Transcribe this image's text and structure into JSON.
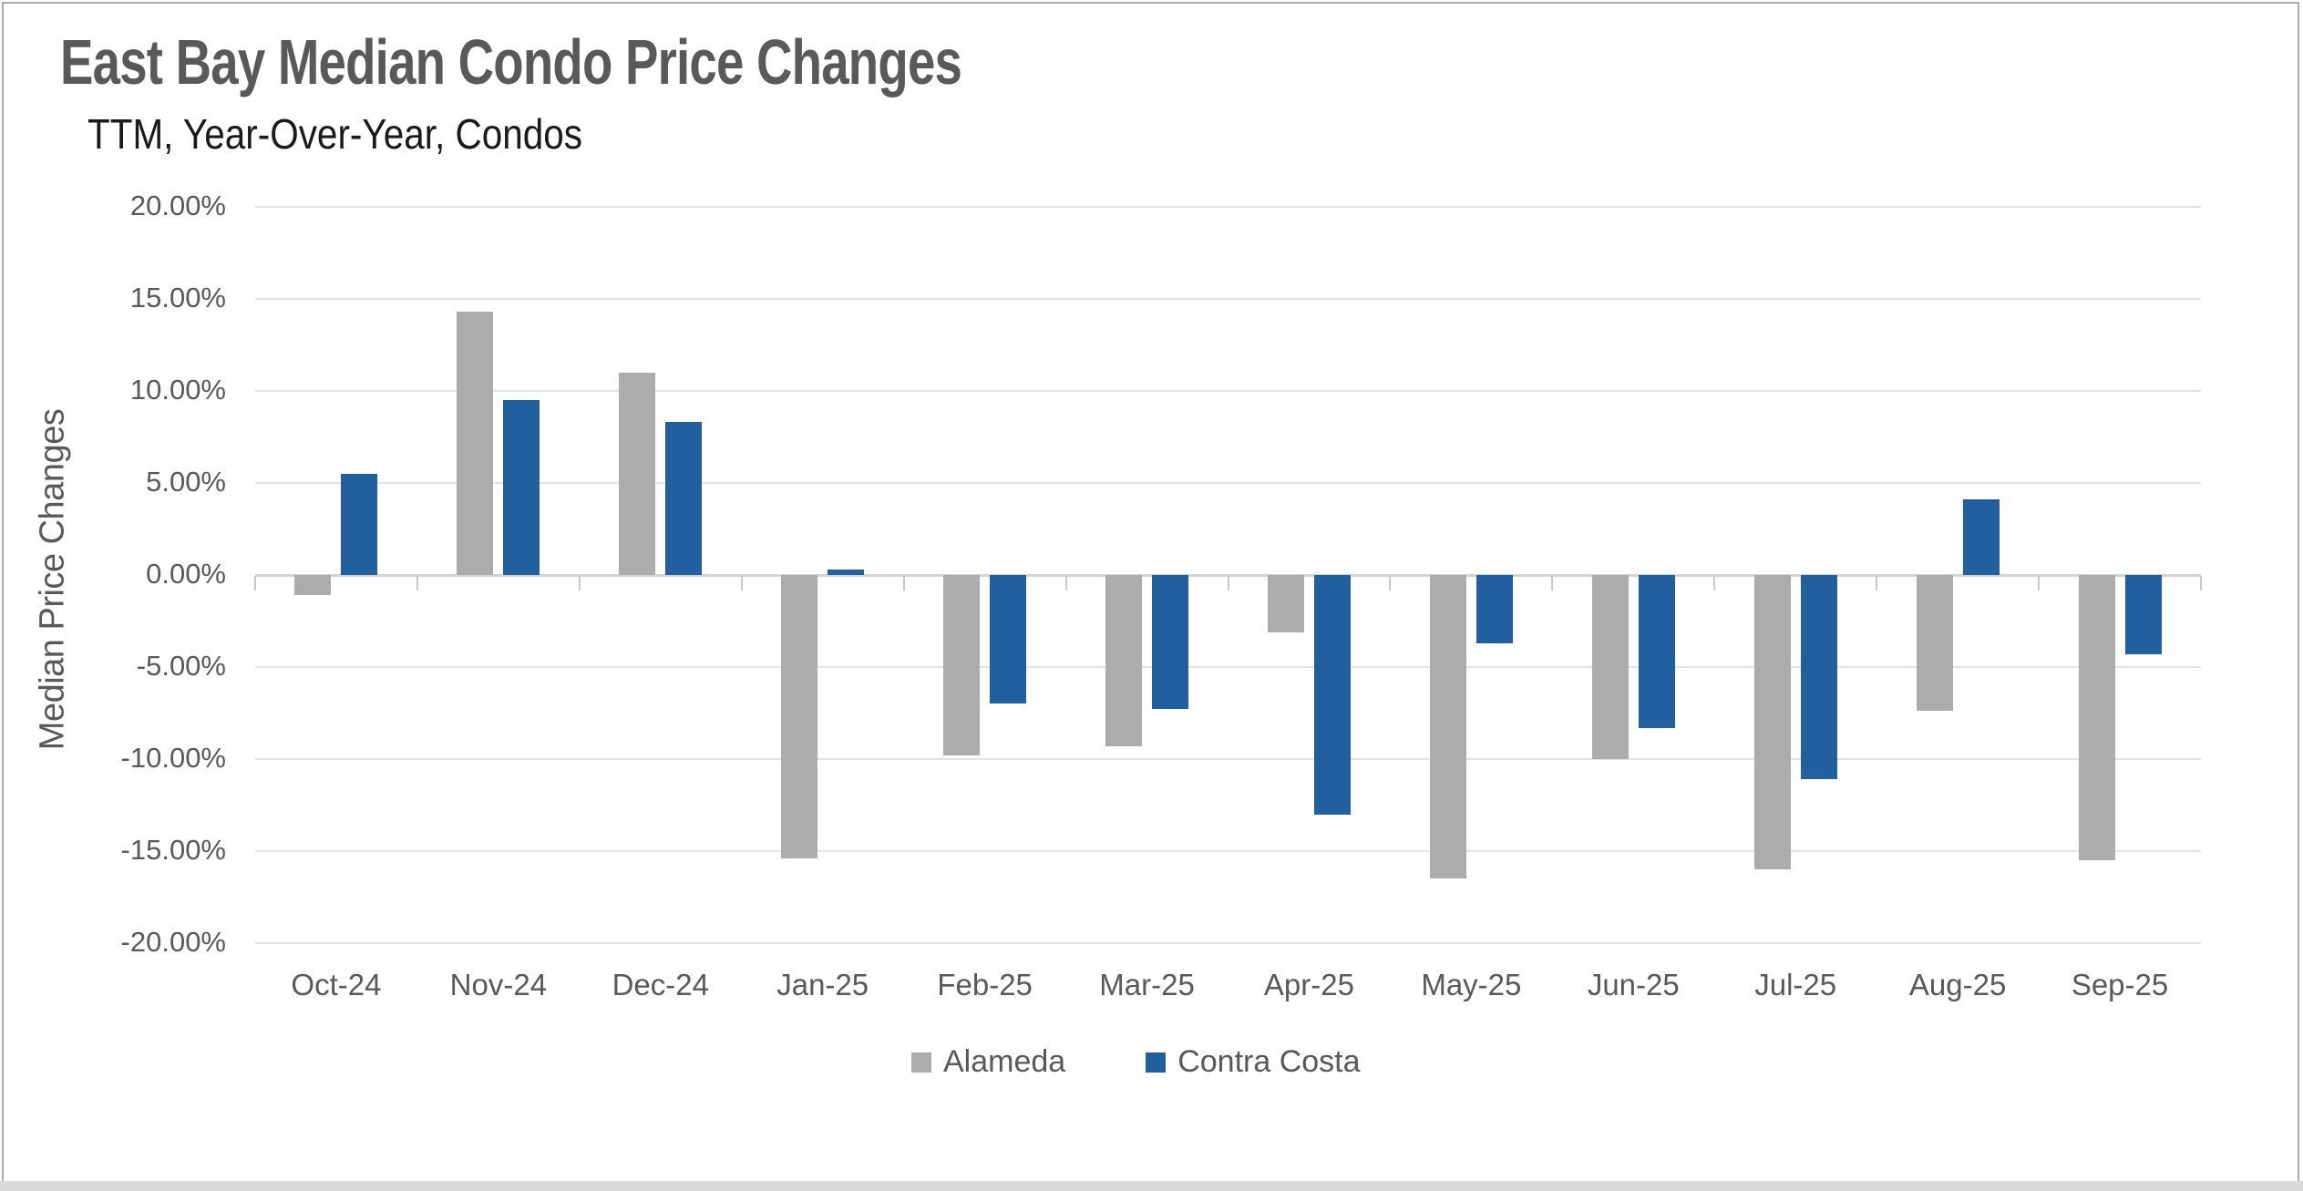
{
  "page": {
    "background": "#FFFFFF",
    "border_color": "#ABABAB",
    "bottom_strip_color": "#D9D9D9"
  },
  "style": {
    "gridline_color": "#E3E3E3",
    "zero_axis_color": "#D4D4D4",
    "tick_color": "#C9C9C9",
    "text_color": "#595959",
    "subtitle_color": "#1A1A1A"
  },
  "chart_data": {
    "type": "bar",
    "title": "East Bay Median Condo Price Changes",
    "subtitle": "TTM, Year-Over-Year, Condos",
    "xlabel": "",
    "ylabel": "Median Price Changes",
    "categories": [
      "Oct-24",
      "Nov-24",
      "Dec-24",
      "Jan-25",
      "Feb-25",
      "Mar-25",
      "Apr-25",
      "May-25",
      "Jun-25",
      "Jul-25",
      "Aug-25",
      "Sep-25"
    ],
    "series": [
      {
        "name": "Alameda",
        "color": "#ACACAC",
        "values": [
          -1.1,
          14.3,
          11.0,
          -15.4,
          -9.8,
          -9.3,
          -3.1,
          -16.5,
          -10.0,
          -16.0,
          -7.4,
          -15.5
        ]
      },
      {
        "name": "Contra Costa",
        "color": "#215F9E",
        "values": [
          5.5,
          9.5,
          8.3,
          0.3,
          -7.0,
          -7.3,
          -13.0,
          -3.7,
          -8.3,
          -11.1,
          4.1,
          -4.3
        ]
      }
    ],
    "ylim": [
      -20,
      20
    ],
    "y_ticks": [
      20,
      15,
      10,
      5,
      0,
      -5,
      -10,
      -15,
      -20
    ],
    "y_tick_labels": [
      "20.00%",
      "15.00%",
      "10.00%",
      "5.00%",
      "0.00%",
      "-5.00%",
      "-10.00%",
      "-15.00%",
      "-20.00%"
    ],
    "values_unit": "percent",
    "grid": true,
    "legend_position": "bottom-center",
    "legend": [
      "Alameda",
      "Contra Costa"
    ]
  }
}
